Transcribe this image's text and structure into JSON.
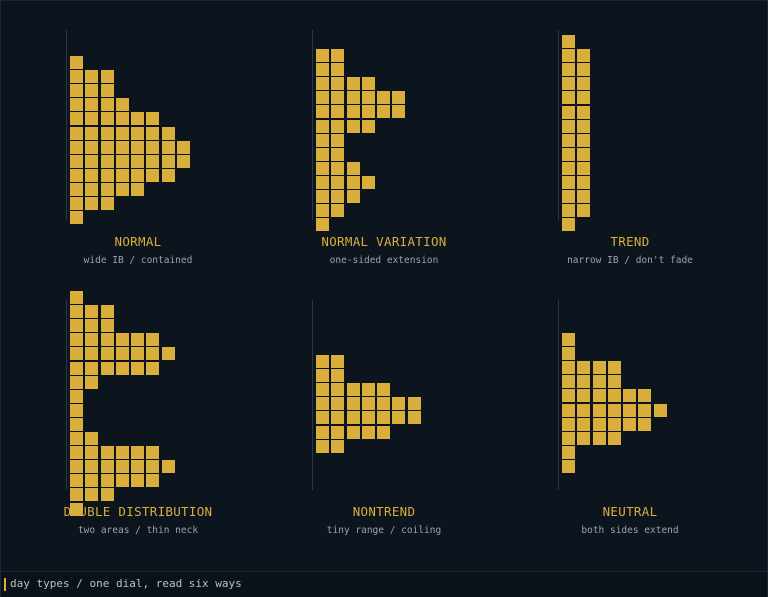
{
  "block_color": "#d9ae3b",
  "panels": [
    {
      "title": "NORMAL",
      "subtitle": "wide IB / contained",
      "rows": [
        1,
        3,
        3,
        4,
        6,
        7,
        8,
        8,
        7,
        5,
        3,
        1
      ]
    },
    {
      "title": "NORMAL VARIATION",
      "subtitle": "one-sided extension",
      "rows": [
        2,
        2,
        4,
        6,
        6,
        4,
        2,
        2,
        3,
        4,
        3,
        2,
        1
      ]
    },
    {
      "title": "TREND",
      "subtitle": "narrow IB / don't fade",
      "rows": [
        1,
        2,
        2,
        2,
        2,
        2,
        2,
        2,
        2,
        2,
        2,
        2,
        2,
        1
      ]
    },
    {
      "title": "DOUBLE DISTRIBUTION",
      "subtitle": "two areas / thin neck",
      "rows": [
        1,
        3,
        3,
        6,
        7,
        6,
        2,
        1,
        1,
        1,
        2,
        6,
        7,
        6,
        3,
        1
      ]
    },
    {
      "title": "NONTREND",
      "subtitle": "tiny range / coiling",
      "rows": [
        2,
        2,
        5,
        7,
        7,
        5,
        2
      ]
    },
    {
      "title": "NEUTRAL",
      "subtitle": "both sides extend",
      "rows": [
        1,
        1,
        4,
        4,
        6,
        7,
        6,
        4,
        1,
        1
      ]
    }
  ],
  "footer": {
    "caption": "day types / one dial, read six ways"
  }
}
